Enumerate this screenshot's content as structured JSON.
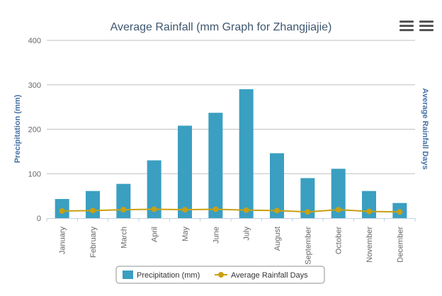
{
  "chart_data": {
    "type": "bar",
    "title": "Average Rainfall (mm Graph for Zhangjiajie)",
    "categories": [
      "January",
      "February",
      "March",
      "April",
      "May",
      "June",
      "July",
      "August",
      "September",
      "October",
      "November",
      "December"
    ],
    "series": [
      {
        "name": "Precipitation (mm)",
        "type": "bar",
        "color": "#3a9fc1",
        "values": [
          43,
          61,
          77,
          130,
          208,
          237,
          290,
          146,
          90,
          111,
          61,
          34
        ]
      },
      {
        "name": "Average Rainfall Days",
        "type": "line",
        "color": "#c9a012",
        "values": [
          16,
          17,
          19,
          20,
          19,
          20,
          18,
          17,
          14,
          19,
          15,
          14
        ]
      }
    ],
    "ylabel": "Precipitation (mm)",
    "y2label": "Average Rainfall Days",
    "ylim": [
      0,
      400
    ],
    "yticks": [
      "0",
      "100",
      "200",
      "300",
      "400"
    ],
    "grid": true,
    "legend_position": "bottom-center"
  },
  "icons": {
    "menu_1": "hamburger-menu-icon",
    "menu_2": "hamburger-menu-icon"
  }
}
